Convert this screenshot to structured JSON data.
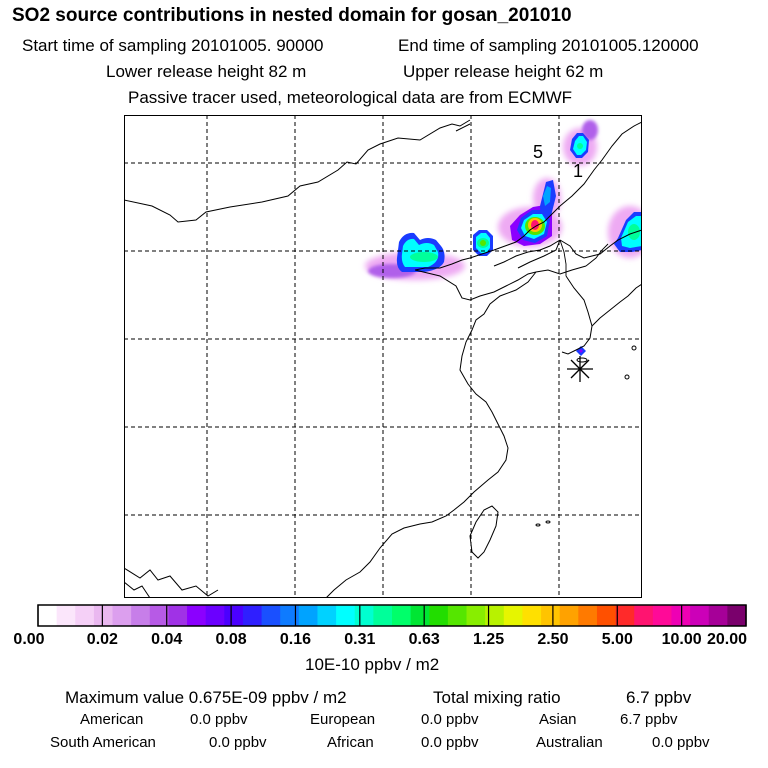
{
  "header": {
    "title": "SO2 source contributions in nested domain for gosan_201010",
    "start_time": "Start time of sampling 20101005. 90000",
    "end_time": "End time of sampling 20101005.120000",
    "lower_release": "Lower release height   82 m",
    "upper_release": "Upper release height   62 m",
    "tracer_note": "Passive tracer used, meteorological data are from ECMWF"
  },
  "map": {
    "labels": [
      "5",
      "1"
    ],
    "station_marker": "asterisk-icon"
  },
  "colorbar": {
    "tick_labels": [
      "0.00",
      "0.02",
      "0.04",
      "0.08",
      "0.16",
      "0.31",
      "0.63",
      "1.25",
      "2.50",
      "5.00",
      "10.00",
      "20.00"
    ],
    "unit": "10E-10 ppbv / m2",
    "colors": [
      "#ffffff",
      "#fbe6fb",
      "#f5d0f7",
      "#eab8f0",
      "#dc9fee",
      "#c77ee9",
      "#b75ae6",
      "#a032e6",
      "#8b00ff",
      "#6b00ff",
      "#4b00ff",
      "#2f1fff",
      "#1a50ff",
      "#0e7bff",
      "#00a3ff",
      "#00d2ff",
      "#00ffff",
      "#00ffd0",
      "#00ff9a",
      "#00ff6a",
      "#00e633",
      "#22dd00",
      "#55e600",
      "#88ee00",
      "#b8f200",
      "#e6f500",
      "#ffe000",
      "#ffc400",
      "#ffa200",
      "#ff7a00",
      "#ff5000",
      "#ff2a2a",
      "#ff1470",
      "#ff0a98",
      "#ee00b4",
      "#cc00b8",
      "#a60098",
      "#7a006c"
    ]
  },
  "stats": {
    "max_value": "Maximum value  0.675E-09 ppbv / m2",
    "total_mixing": "Total mixing ratio",
    "total_value": "6.7 ppbv",
    "rows": [
      [
        {
          "name": "American",
          "value": "0.0 ppbv"
        },
        {
          "name": "European",
          "value": "0.0 ppbv"
        },
        {
          "name": "Asian",
          "value": "6.7 ppbv"
        }
      ],
      [
        {
          "name": "South American",
          "value": "0.0 ppbv"
        },
        {
          "name": "African",
          "value": "0.0 ppbv"
        },
        {
          "name": "Australian",
          "value": "0.0 ppbv"
        }
      ]
    ]
  }
}
